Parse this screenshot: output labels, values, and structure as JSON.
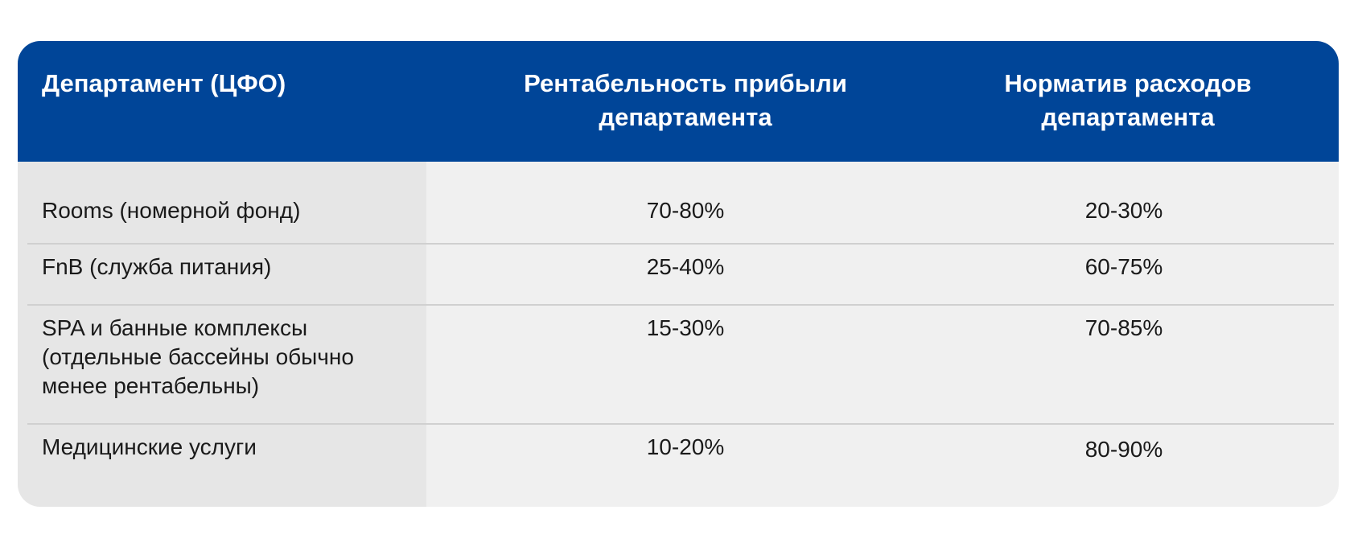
{
  "table": {
    "headers": [
      "Департамент (ЦФО)",
      "Рентабельность прибыли департамента",
      "Норматив расходов департамента"
    ],
    "header_lines": {
      "col2_line1": "Рентабельность прибыли",
      "col2_line2": "департамента",
      "col3_line1": "Норматив расходов",
      "col3_line2": "департамента"
    },
    "rows": [
      {
        "department": "Rooms (номерной фонд)",
        "profitability": "70-80%",
        "expense_norm": "20-30%"
      },
      {
        "department": "FnB (служба питания)",
        "profitability": "25-40%",
        "expense_norm": "60-75%"
      },
      {
        "department": "SPA и банные комплексы (отдельные бассейны обычно менее рентабельны)",
        "department_lines": [
          "SPA и банные комплексы",
          "(отдельные бассейны обычно",
          "менее рентабельны)"
        ],
        "profitability": "15-30%",
        "expense_norm": "70-85%"
      },
      {
        "department": "Медицинские услуги",
        "profitability": "10-20%",
        "expense_norm": "80-90%"
      }
    ]
  },
  "colors": {
    "header_bg": "#004598",
    "header_text": "#ffffff",
    "first_col_bg": "#e6e6e6",
    "body_bg": "#f0f0f0",
    "separator": "#d0d0d0"
  }
}
